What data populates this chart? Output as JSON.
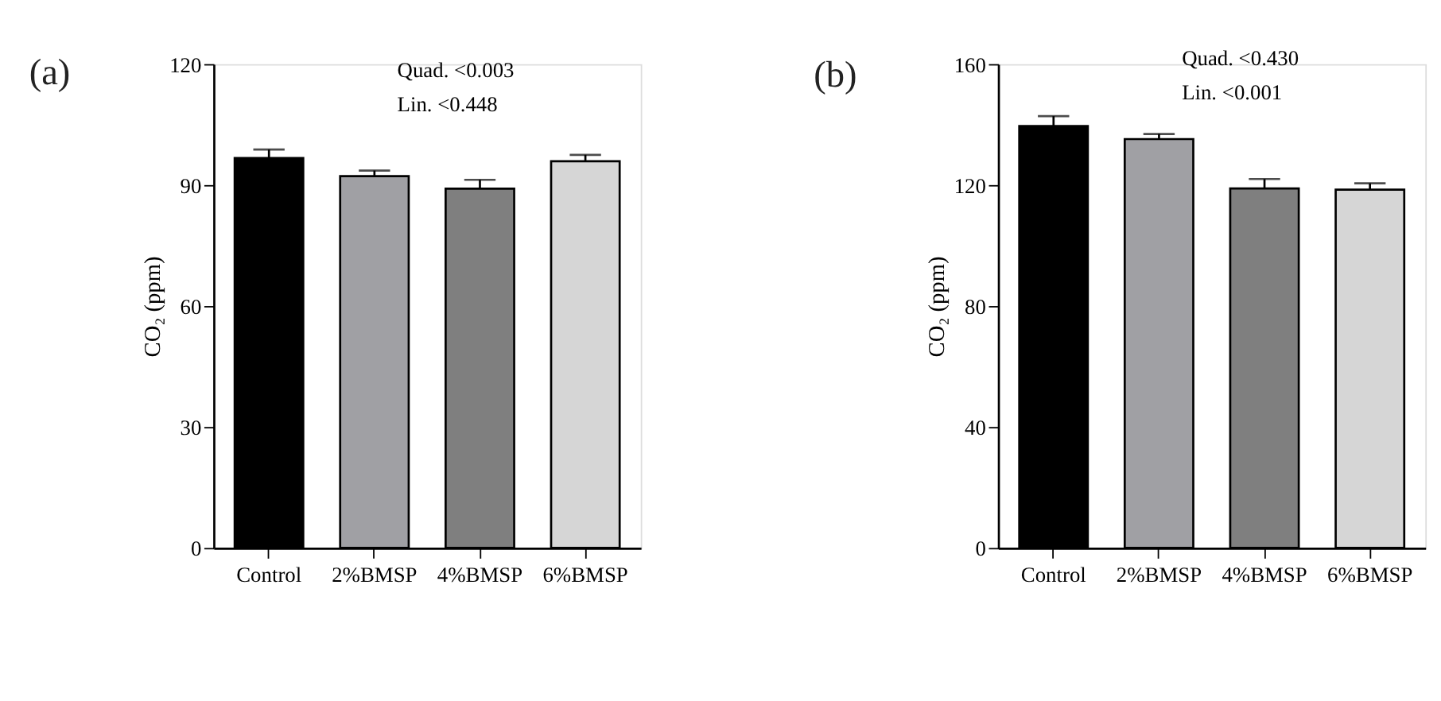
{
  "chart_data": [
    {
      "type": "bar",
      "title": "(a)",
      "ylabel": "CO₂ (ppm)",
      "categories": [
        "Control",
        "2%BMSP",
        "4%BMSP",
        "6%BMSP"
      ],
      "values": [
        96.7,
        92.2,
        89.1,
        95.9
      ],
      "colors": [
        "#000000",
        "#a0a0a4",
        "#7f7f7f",
        "#d6d6d6"
      ],
      "errors": [
        [
          96.7,
          98.8
        ],
        [
          92.2,
          93.6
        ],
        [
          89.1,
          91.3
        ],
        [
          95.9,
          97.5
        ]
      ],
      "ylim": [
        0,
        120
      ],
      "yticks": [
        0,
        30,
        60,
        90,
        120
      ],
      "grid": false,
      "annotations": [
        "Quad. <0.003",
        "Lin. <0.448"
      ]
    },
    {
      "type": "bar",
      "title": "(b)",
      "ylabel": "CO₂ (ppm)",
      "categories": [
        "Control",
        "2%BMSP",
        "4%BMSP",
        "6%BMSP"
      ],
      "values": [
        139.5,
        135.2,
        118.9,
        118.5
      ],
      "colors": [
        "#000000",
        "#a0a0a4",
        "#7f7f7f",
        "#d6d6d6"
      ],
      "errors": [
        [
          139.5,
          142.8
        ],
        [
          135.2,
          136.9
        ],
        [
          118.9,
          122.0
        ],
        [
          118.5,
          120.6
        ]
      ],
      "ylim": [
        0,
        160
      ],
      "yticks": [
        0,
        40,
        80,
        120,
        160
      ],
      "grid": false,
      "annotations": [
        "Quad. <0.430",
        "Lin. <0.001"
      ]
    }
  ]
}
